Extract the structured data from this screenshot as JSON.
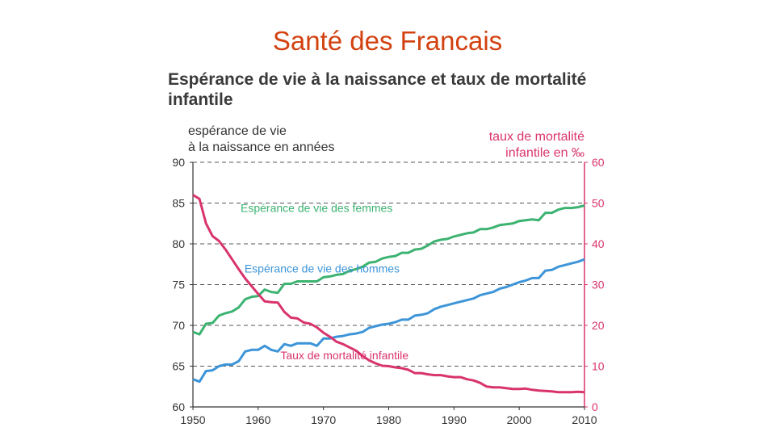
{
  "slide": {
    "title": "Santé des Francais"
  },
  "chart_data": {
    "type": "line",
    "title": "Espérance de vie à la naissance et taux de mortalité infantile",
    "left_axis_label": [
      "espérance de vie",
      "à la naissance en années"
    ],
    "right_axis_label": [
      "taux de mortalité",
      "infantile en ‰"
    ],
    "xlim": [
      1950,
      2010
    ],
    "ylim_left": [
      60,
      90
    ],
    "ylim_right": [
      0,
      60
    ],
    "x_ticks": [
      "1950",
      "1960",
      "1970",
      "1980",
      "1990",
      "2000",
      "2010"
    ],
    "y_ticks_left": [
      "60",
      "65",
      "70",
      "75",
      "80",
      "85",
      "90"
    ],
    "y_ticks_right": [
      "0",
      "10",
      "20",
      "30",
      "40",
      "50",
      "60"
    ],
    "grid": "horizontal dashed",
    "series": [
      {
        "name": "Espérance de vie des femmes",
        "axis": "left",
        "color": "#3cb371",
        "label_year": 1957.3,
        "label_value": 83.9,
        "x": [
          1950,
          1951,
          1952,
          1953,
          1954,
          1955,
          1956,
          1957,
          1958,
          1959,
          1960,
          1961,
          1962,
          1963,
          1964,
          1965,
          1966,
          1967,
          1968,
          1969,
          1970,
          1971,
          1972,
          1973,
          1974,
          1975,
          1976,
          1977,
          1978,
          1979,
          1980,
          1981,
          1982,
          1983,
          1984,
          1985,
          1986,
          1987,
          1988,
          1989,
          1990,
          1991,
          1992,
          1993,
          1994,
          1995,
          1996,
          1997,
          1998,
          1999,
          2000,
          2001,
          2002,
          2003,
          2004,
          2005,
          2006,
          2007,
          2008,
          2009,
          2010
        ],
        "values": [
          69.2,
          68.9,
          70.2,
          70.3,
          71.2,
          71.5,
          71.7,
          72.2,
          73.2,
          73.5,
          73.6,
          74.4,
          74.1,
          74.0,
          75.1,
          75.1,
          75.4,
          75.4,
          75.4,
          75.4,
          75.9,
          76.0,
          76.2,
          76.3,
          76.7,
          76.9,
          77.2,
          77.7,
          77.8,
          78.2,
          78.4,
          78.5,
          78.9,
          78.9,
          79.3,
          79.4,
          79.8,
          80.3,
          80.5,
          80.6,
          80.9,
          81.1,
          81.3,
          81.4,
          81.8,
          81.8,
          82.0,
          82.3,
          82.4,
          82.5,
          82.8,
          82.9,
          83.0,
          82.9,
          83.8,
          83.8,
          84.2,
          84.4,
          84.4,
          84.5,
          84.7
        ]
      },
      {
        "name": "Espérance de vie des hommes",
        "axis": "left",
        "color": "#3d95d8",
        "label_year": 1957.9,
        "label_value": 76.5,
        "x": [
          1950,
          1951,
          1952,
          1953,
          1954,
          1955,
          1956,
          1957,
          1958,
          1959,
          1960,
          1961,
          1962,
          1963,
          1964,
          1965,
          1966,
          1967,
          1968,
          1969,
          1970,
          1971,
          1972,
          1973,
          1974,
          1975,
          1976,
          1977,
          1978,
          1979,
          1980,
          1981,
          1982,
          1983,
          1984,
          1985,
          1986,
          1987,
          1988,
          1989,
          1990,
          1991,
          1992,
          1993,
          1994,
          1995,
          1996,
          1997,
          1998,
          1999,
          2000,
          2001,
          2002,
          2003,
          2004,
          2005,
          2006,
          2007,
          2008,
          2009,
          2010
        ],
        "values": [
          63.4,
          63.1,
          64.4,
          64.5,
          65.0,
          65.2,
          65.2,
          65.6,
          66.8,
          67.0,
          67.0,
          67.5,
          67.0,
          66.8,
          67.7,
          67.5,
          67.8,
          67.8,
          67.8,
          67.5,
          68.4,
          68.4,
          68.6,
          68.7,
          68.9,
          69.0,
          69.2,
          69.7,
          69.9,
          70.1,
          70.2,
          70.4,
          70.7,
          70.7,
          71.2,
          71.3,
          71.5,
          72.0,
          72.3,
          72.5,
          72.7,
          72.9,
          73.1,
          73.3,
          73.7,
          73.9,
          74.1,
          74.5,
          74.7,
          75.0,
          75.3,
          75.5,
          75.8,
          75.8,
          76.7,
          76.8,
          77.2,
          77.4,
          77.6,
          77.8,
          78.1
        ]
      },
      {
        "name": "Taux de mortalité infantile",
        "axis": "right",
        "color": "#d9336d",
        "label_year": 1963.4,
        "label_value": 11.7,
        "x": [
          1950,
          1951,
          1952,
          1953,
          1954,
          1955,
          1956,
          1957,
          1958,
          1959,
          1960,
          1961,
          1962,
          1963,
          1964,
          1965,
          1966,
          1967,
          1968,
          1969,
          1970,
          1971,
          1972,
          1973,
          1974,
          1975,
          1976,
          1977,
          1978,
          1979,
          1980,
          1981,
          1982,
          1983,
          1984,
          1985,
          1986,
          1987,
          1988,
          1989,
          1990,
          1991,
          1992,
          1993,
          1994,
          1995,
          1996,
          1997,
          1998,
          1999,
          2000,
          2001,
          2002,
          2003,
          2004,
          2005,
          2006,
          2007,
          2008,
          2009,
          2010
        ],
        "values": [
          52.0,
          51.0,
          45.0,
          41.9,
          40.7,
          38.6,
          36.2,
          33.8,
          31.5,
          29.6,
          27.7,
          25.9,
          25.7,
          25.6,
          23.3,
          21.9,
          21.7,
          20.7,
          20.4,
          19.5,
          18.2,
          17.2,
          16.0,
          15.4,
          14.6,
          13.8,
          12.5,
          11.4,
          10.7,
          10.1,
          10.0,
          9.7,
          9.5,
          9.1,
          8.3,
          8.3,
          8.0,
          7.8,
          7.8,
          7.5,
          7.3,
          7.3,
          6.8,
          6.5,
          5.9,
          5.0,
          4.8,
          4.8,
          4.6,
          4.4,
          4.4,
          4.5,
          4.2,
          4.0,
          3.9,
          3.8,
          3.6,
          3.6,
          3.6,
          3.7,
          3.6
        ]
      }
    ]
  }
}
